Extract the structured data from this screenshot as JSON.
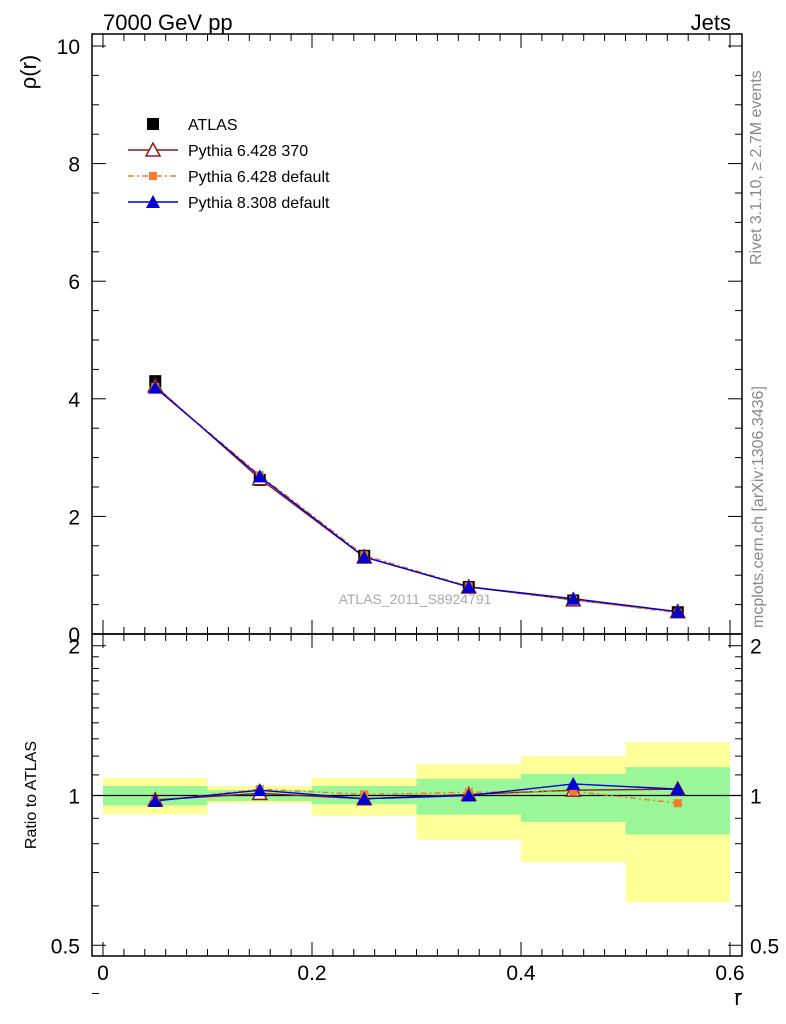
{
  "header": {
    "left": "7000 GeV pp",
    "right": "Jets"
  },
  "side": {
    "rivet": "Rivet 3.1.10, ≥ 2.7M events",
    "mcplots": "mcplots.cern.ch [arXiv:1306.3436]"
  },
  "analysis": "ATLAS_2011_S8924791",
  "colors": {
    "atlas": "#000000",
    "p6_370": "#8b1a1a",
    "p6_default": "#f07b2a",
    "p8": "#0000d0",
    "band_inner": "#99f799",
    "band_outer": "#ffff99"
  },
  "chart_data": [
    {
      "type": "scatter",
      "xlabel": "",
      "ylabel": "ρ(r)",
      "xlim": [
        0,
        0.6
      ],
      "ylim": [
        0,
        10.2
      ],
      "yticks": [
        "0",
        "2",
        "4",
        "6",
        "8",
        "10"
      ],
      "legend_position": "top-left",
      "x": [
        0.05,
        0.15,
        0.25,
        0.35,
        0.45,
        0.55
      ],
      "series": [
        {
          "name": "ATLAS",
          "values": [
            4.3,
            2.62,
            1.33,
            0.8,
            0.57,
            0.37
          ],
          "marker": "square"
        },
        {
          "name": "Pythia 6.428 370",
          "values": [
            4.22,
            2.64,
            1.31,
            0.8,
            0.58,
            0.38
          ],
          "marker": "triangle-open"
        },
        {
          "name": "Pythia 6.428 default",
          "values": [
            4.2,
            2.7,
            1.34,
            0.81,
            0.58,
            0.36
          ],
          "marker": "square-small",
          "dashed": true
        },
        {
          "name": "Pythia 8.308 default",
          "values": [
            4.19,
            2.68,
            1.31,
            0.8,
            0.6,
            0.38
          ],
          "marker": "triangle"
        }
      ]
    },
    {
      "type": "line",
      "xlabel": "r",
      "ylabel": "Ratio to ATLAS",
      "xlim": [
        0,
        0.6
      ],
      "ylim": [
        0.35,
        2.25
      ],
      "xticks": [
        "0",
        "0.2",
        "0.4",
        "0.6"
      ],
      "yticks": [
        "0.5",
        "1",
        "2"
      ],
      "x": [
        0.05,
        0.15,
        0.25,
        0.35,
        0.45,
        0.55
      ],
      "bands": {
        "edges": [
          0,
          0.1,
          0.2,
          0.3,
          0.4,
          0.5,
          0.6
        ],
        "inner_low": [
          0.955,
          0.975,
          0.96,
          0.915,
          0.885,
          0.835
        ],
        "inner_high": [
          1.045,
          1.025,
          1.045,
          1.08,
          1.105,
          1.14
        ],
        "outer_low": [
          0.915,
          0.965,
          0.91,
          0.815,
          0.735,
          0.61
        ],
        "outer_high": [
          1.085,
          1.045,
          1.085,
          1.155,
          1.2,
          1.28
        ]
      },
      "series": [
        {
          "name": "Pythia 6.428 370",
          "values": [
            0.98,
            1.01,
            0.985,
            1.005,
            1.025,
            1.03
          ]
        },
        {
          "name": "Pythia 6.428 default",
          "values": [
            0.975,
            1.03,
            1.005,
            1.015,
            1.02,
            0.965
          ]
        },
        {
          "name": "Pythia 8.308 default",
          "values": [
            0.975,
            1.025,
            0.985,
            1.0,
            1.055,
            1.03
          ]
        }
      ]
    }
  ]
}
